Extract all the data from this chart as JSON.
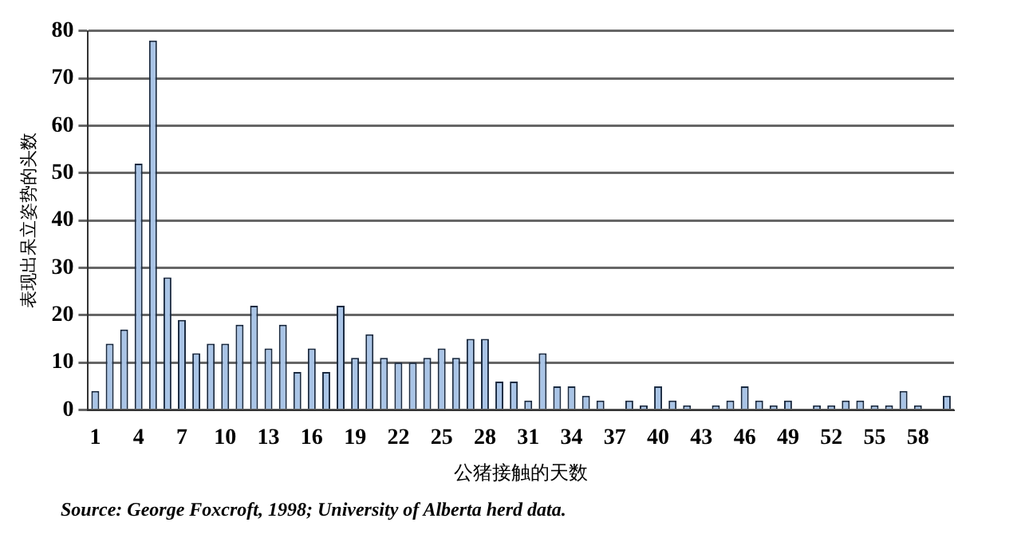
{
  "chart_data": {
    "type": "bar",
    "xlabel": "公猪接触的天数",
    "ylabel": "表现出呆立姿势的头数",
    "categories": [
      "1",
      null,
      null,
      "4",
      null,
      null,
      "7",
      null,
      null,
      "10",
      null,
      null,
      "13",
      null,
      null,
      "16",
      null,
      null,
      "19",
      null,
      null,
      "22",
      null,
      null,
      "25",
      null,
      null,
      "28",
      null,
      null,
      "31",
      null,
      null,
      "34",
      null,
      null,
      "37",
      null,
      null,
      "40",
      null,
      null,
      "43",
      null,
      null,
      "46",
      null,
      null,
      "49",
      null,
      null,
      "52",
      null,
      null,
      "55",
      null,
      null,
      "58",
      null,
      null
    ],
    "values": [
      4,
      14,
      17,
      52,
      78,
      28,
      19,
      12,
      14,
      14,
      18,
      22,
      13,
      18,
      8,
      13,
      8,
      22,
      11,
      16,
      11,
      10,
      10,
      11,
      13,
      11,
      15,
      15,
      6,
      6,
      2,
      12,
      5,
      5,
      3,
      2,
      0,
      2,
      1,
      5,
      2,
      1,
      0,
      1,
      2,
      5,
      2,
      1,
      2,
      0,
      1,
      1,
      2,
      2,
      1,
      1,
      4,
      1,
      0,
      3
    ],
    "color": "#a9c4e6",
    "ylim": [
      0,
      80
    ],
    "yticks": [
      0,
      10,
      20,
      30,
      40,
      50,
      60,
      70,
      80
    ],
    "grid": "y",
    "annotations": [
      "Source:  George Foxcroft, 1998; University of Alberta herd data."
    ]
  }
}
